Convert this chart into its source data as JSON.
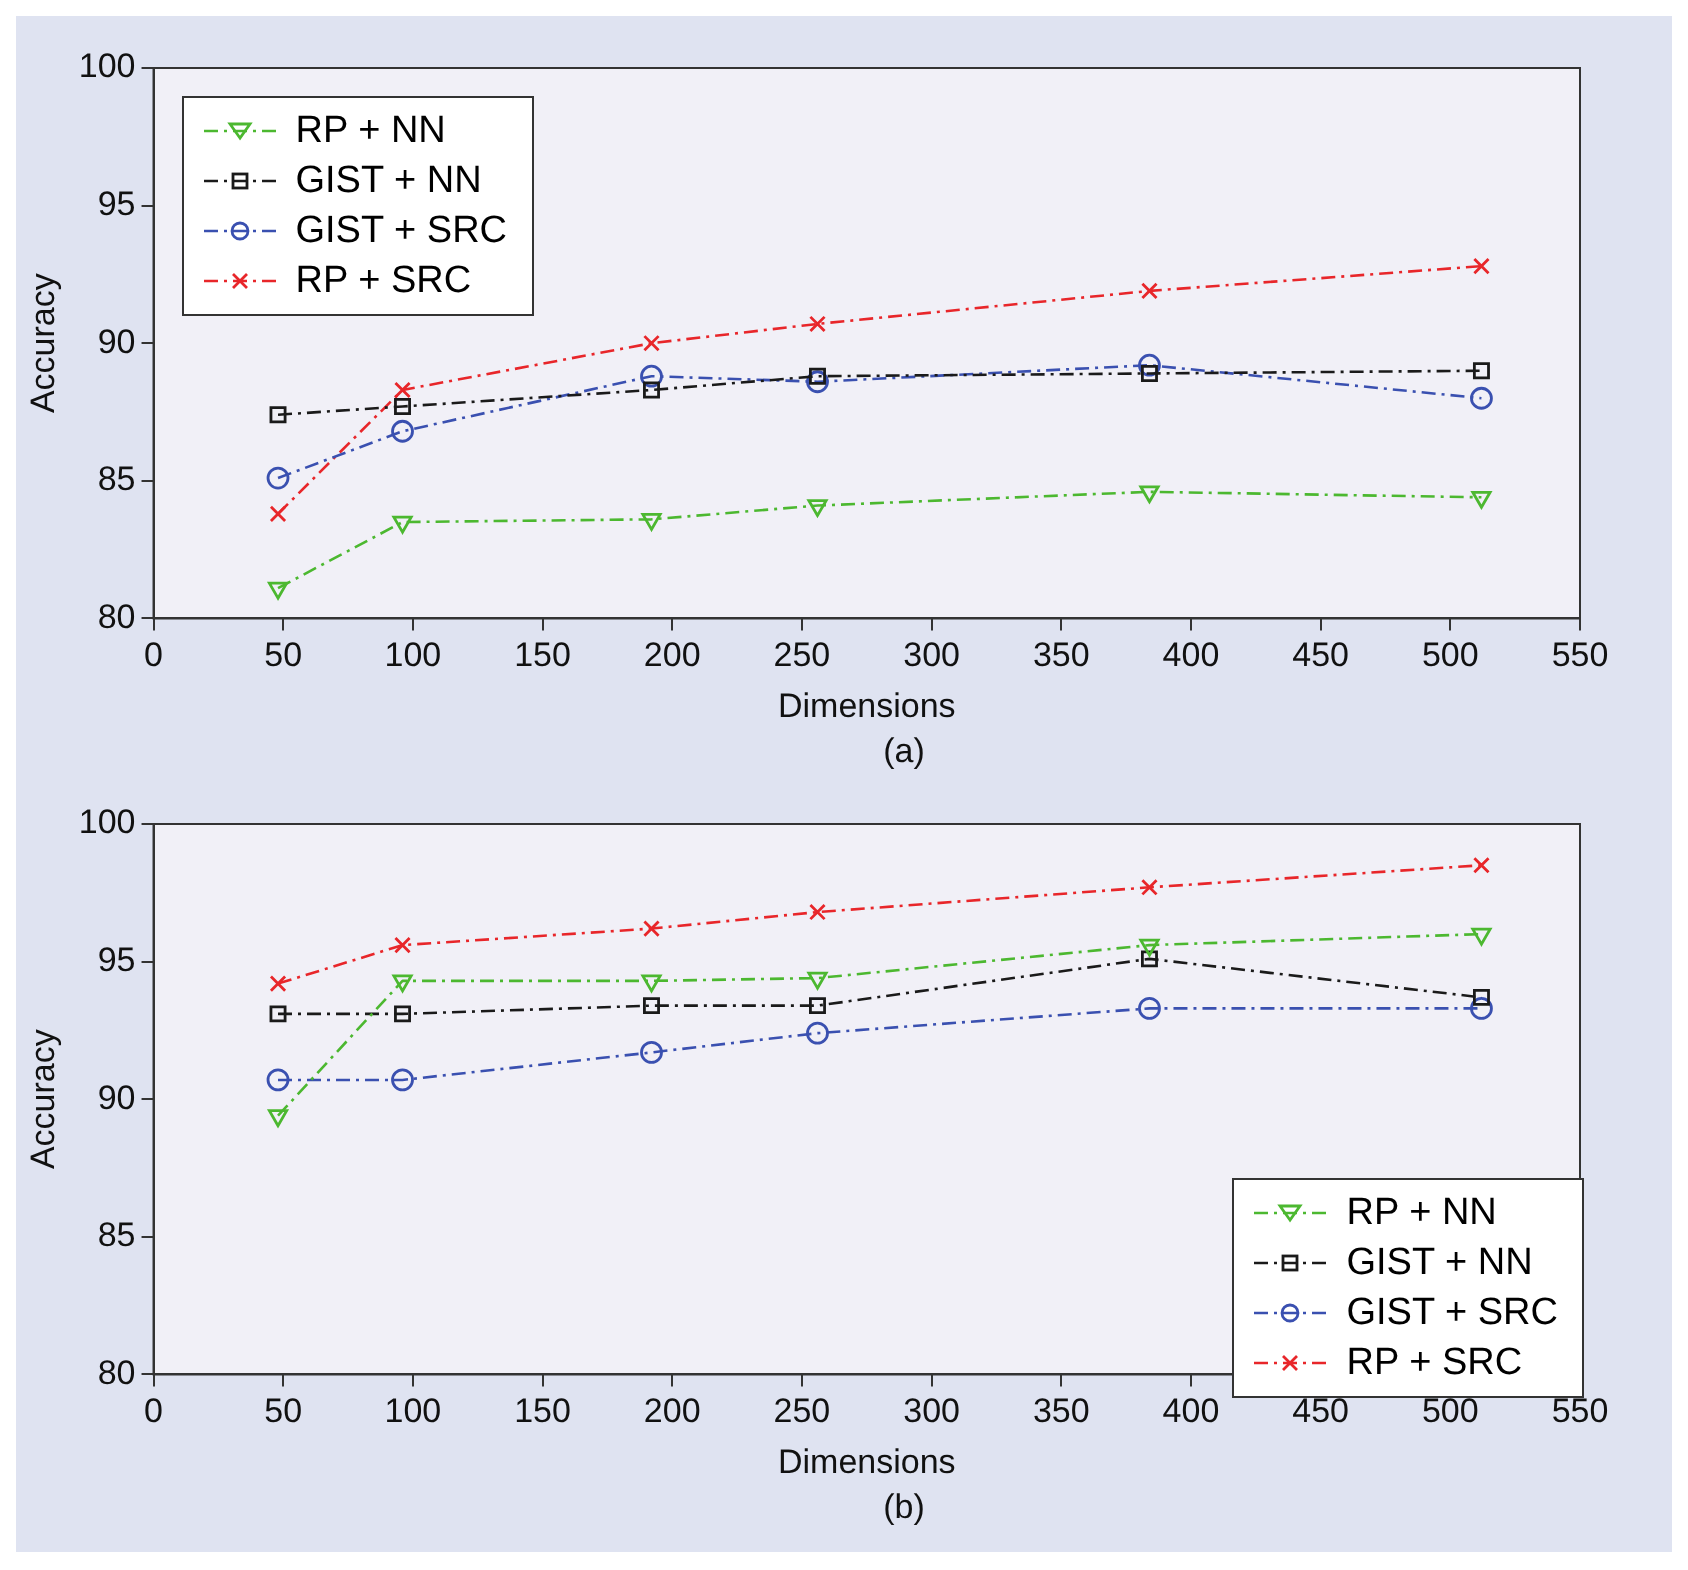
{
  "chart_data": [
    {
      "type": "line",
      "xlabel": "Dimensions",
      "ylabel": "Accuracy",
      "annotations": [
        "(a)"
      ],
      "x": [
        48,
        96,
        192,
        256,
        384,
        512
      ],
      "xlim": [
        0,
        550
      ],
      "xticks": [
        0,
        50,
        100,
        150,
        200,
        250,
        300,
        350,
        400,
        450,
        500,
        550
      ],
      "ylim": [
        80,
        100
      ],
      "yticks": [
        80,
        85,
        90,
        95,
        100
      ],
      "legend": "top left",
      "grid": false,
      "line_style": "dashed",
      "series": [
        {
          "name": "RP + NN",
          "color": "#4cb830",
          "marker": "triangle",
          "values": [
            81.1,
            83.5,
            83.6,
            84.1,
            84.6,
            84.4
          ]
        },
        {
          "name": "GIST + NN",
          "color": "#1a1a1a",
          "marker": "square",
          "values": [
            87.4,
            87.7,
            88.3,
            88.8,
            88.9,
            89.0
          ]
        },
        {
          "name": "GIST + SRC",
          "color": "#3a50b0",
          "marker": "circle",
          "values": [
            85.1,
            86.8,
            88.8,
            88.6,
            89.2,
            88.0
          ]
        },
        {
          "name": "RP + SRC",
          "color": "#e8262a",
          "marker": "cross",
          "values": [
            83.8,
            88.3,
            90.0,
            90.7,
            91.9,
            92.8
          ]
        }
      ]
    },
    {
      "type": "line",
      "xlabel": "Dimensions",
      "ylabel": "Accuracy",
      "annotations": [
        "(b)"
      ],
      "x": [
        48,
        96,
        192,
        256,
        384,
        512
      ],
      "xlim": [
        0,
        550
      ],
      "xticks": [
        0,
        50,
        100,
        150,
        200,
        250,
        300,
        350,
        400,
        450,
        500,
        550
      ],
      "ylim": [
        80,
        100
      ],
      "yticks": [
        80,
        85,
        90,
        95,
        100
      ],
      "legend": "bottom right",
      "grid": false,
      "line_style": "dashed",
      "series": [
        {
          "name": "RP + NN",
          "color": "#4cb830",
          "marker": "triangle",
          "values": [
            89.4,
            94.3,
            94.3,
            94.4,
            95.6,
            96.0
          ]
        },
        {
          "name": "GIST + NN",
          "color": "#1a1a1a",
          "marker": "square",
          "values": [
            93.1,
            93.1,
            93.4,
            93.4,
            95.1,
            93.7
          ]
        },
        {
          "name": "GIST + SRC",
          "color": "#3a50b0",
          "marker": "circle",
          "values": [
            90.7,
            90.7,
            91.7,
            92.4,
            93.3,
            93.3
          ]
        },
        {
          "name": "RP + SRC",
          "color": "#e8262a",
          "marker": "cross",
          "values": [
            94.2,
            95.6,
            96.2,
            96.8,
            97.7,
            98.5
          ]
        }
      ]
    }
  ]
}
